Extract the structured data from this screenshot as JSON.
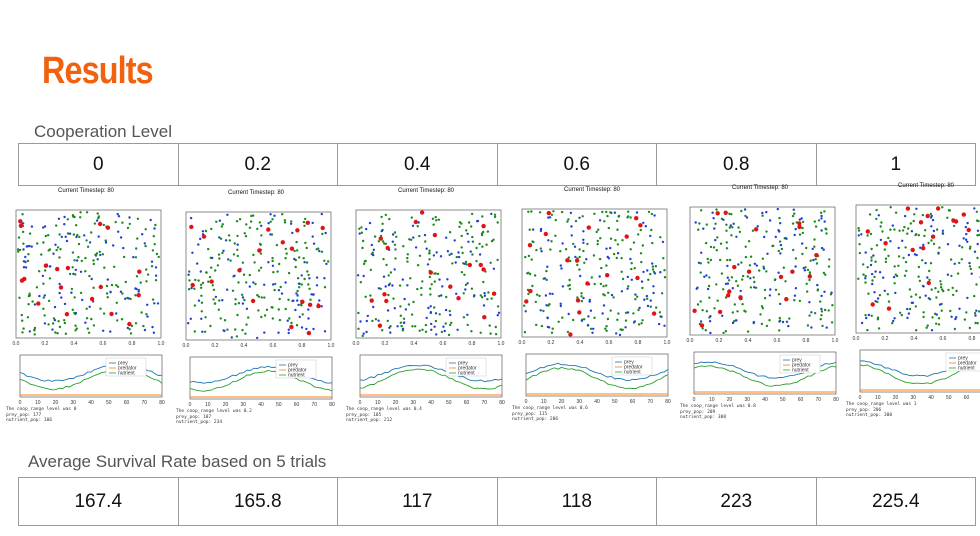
{
  "slide": {
    "title": "Results",
    "cooperation_label": "Cooperation Level",
    "survival_label": "Average Survival Rate based on 5 trials"
  },
  "cooperation_levels": [
    "0",
    "0.2",
    "0.4",
    "0.6",
    "0.8",
    "1"
  ],
  "survival_rates": [
    "167.4",
    "165.8",
    "117",
    "118",
    "223",
    "225.4"
  ],
  "colors": {
    "title": "#f0620f",
    "prey": "#1f3fd6",
    "predator": "#e01414",
    "nutrient": "#1a8a1a"
  },
  "panels": [
    {
      "timestep": "Current Timestep: 80",
      "stats": [
        "The coop_range level was 0",
        "prey_pop: 177",
        "nutrient_pop: 106"
      ]
    },
    {
      "timestep": "Current Timestep: 80",
      "stats": [
        "The coop_range level was 0.2",
        "prey_pop: 187",
        "nutrient_pop: 234"
      ]
    },
    {
      "timestep": "Current Timestep: 80",
      "stats": [
        "The coop_range level was 0.4",
        "prey_pop: 105",
        "nutrient_pop: 212"
      ]
    },
    {
      "timestep": "Current Timestep: 80",
      "stats": [
        "The coop_range level was 0.6",
        "prey_pop: 115",
        "nutrient_pop: 206"
      ]
    },
    {
      "timestep": "Current Timestep: 80",
      "stats": [
        "The coop_range level was 0.8",
        "prey_pop: 209",
        "nutrient_pop: 308"
      ]
    },
    {
      "timestep": "Current Timestep: 80",
      "stats": [
        "The coop_range level was 1",
        "prey_pop: 206",
        "nutrient_pop: 300"
      ]
    }
  ],
  "legend": [
    "prey",
    "predator",
    "nutrient"
  ],
  "sim_ticks": [
    "0.0",
    "0.2",
    "0.4",
    "0.6",
    "0.8",
    "1.0"
  ],
  "pop_x_ticks": [
    "0",
    "10",
    "20",
    "30",
    "40",
    "50",
    "60",
    "70",
    "80"
  ]
}
